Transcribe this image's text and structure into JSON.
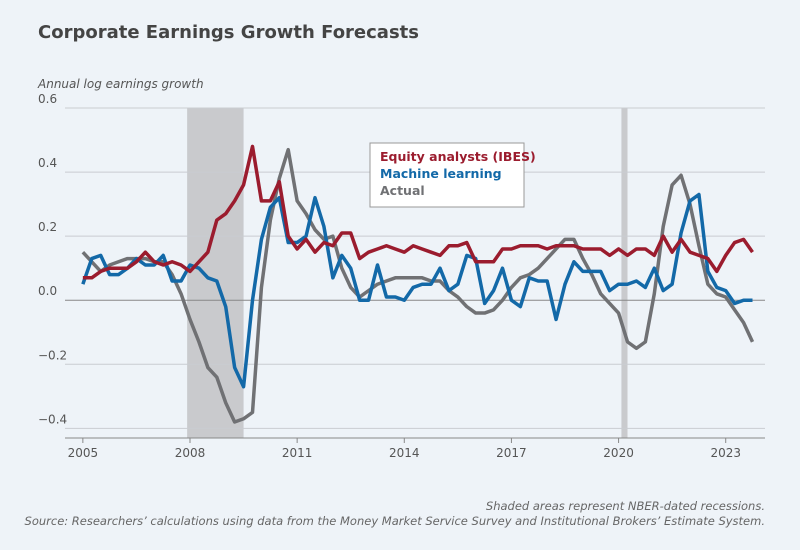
{
  "chart_data": {
    "type": "line",
    "title": "Corporate Earnings Growth Forecasts",
    "y_label": "Annual log earnings growth",
    "notes": [
      "Shaded areas represent NBER-dated recessions.",
      "Source: Researchers’ calculations using data from the Money Market Service Survey and Institutional Brokers’ Estimate System."
    ],
    "x": [
      2005,
      2005.25,
      2005.5,
      2005.75,
      2006,
      2006.25,
      2006.5,
      2006.75,
      2007,
      2007.25,
      2007.5,
      2007.75,
      2008,
      2008.25,
      2008.5,
      2008.75,
      2009,
      2009.25,
      2009.5,
      2009.75,
      2010,
      2010.25,
      2010.5,
      2010.75,
      2011,
      2011.25,
      2011.5,
      2011.75,
      2012,
      2012.25,
      2012.5,
      2012.75,
      2013,
      2013.25,
      2013.5,
      2013.75,
      2014,
      2014.25,
      2014.5,
      2014.75,
      2015,
      2015.25,
      2015.5,
      2015.75,
      2016,
      2016.25,
      2016.5,
      2016.75,
      2017,
      2017.25,
      2017.5,
      2017.75,
      2018,
      2018.25,
      2018.5,
      2018.75,
      2019,
      2019.25,
      2019.5,
      2019.75,
      2020,
      2020.25,
      2020.5,
      2020.75,
      2021,
      2021.25,
      2021.5,
      2021.75,
      2022,
      2022.25,
      2022.5,
      2022.75,
      2023,
      2023.25,
      2023.5,
      2023.75
    ],
    "series": [
      {
        "name": "Equity analysts (IBES)",
        "color": "#9b1c2e",
        "values": [
          0.07,
          0.07,
          0.09,
          0.1,
          0.1,
          0.1,
          0.12,
          0.15,
          0.12,
          0.11,
          0.12,
          0.11,
          0.09,
          0.12,
          0.15,
          0.25,
          0.27,
          0.31,
          0.36,
          0.48,
          0.31,
          0.31,
          0.37,
          0.2,
          0.16,
          0.19,
          0.15,
          0.18,
          0.17,
          0.21,
          0.21,
          0.13,
          0.15,
          0.16,
          0.17,
          0.16,
          0.15,
          0.17,
          0.16,
          0.15,
          0.14,
          0.17,
          0.17,
          0.18,
          0.12,
          0.12,
          0.12,
          0.16,
          0.16,
          0.17,
          0.17,
          0.17,
          0.16,
          0.17,
          0.17,
          0.17,
          0.16,
          0.16,
          0.16,
          0.14,
          0.16,
          0.14,
          0.16,
          0.16,
          0.14,
          0.2,
          0.15,
          0.19,
          0.15,
          0.14,
          0.13,
          0.09,
          0.14,
          0.18,
          0.19,
          0.15
        ]
      },
      {
        "name": "Machine learning",
        "color": "#1369a8",
        "values": [
          0.05,
          0.13,
          0.14,
          0.08,
          0.08,
          0.1,
          0.13,
          0.11,
          0.11,
          0.14,
          0.06,
          0.06,
          0.11,
          0.1,
          0.07,
          0.06,
          -0.02,
          -0.21,
          -0.27,
          0.0,
          0.19,
          0.29,
          0.32,
          0.18,
          0.18,
          0.2,
          0.32,
          0.23,
          0.07,
          0.14,
          0.1,
          0.0,
          0.0,
          0.11,
          0.01,
          0.01,
          0.0,
          0.04,
          0.05,
          0.05,
          0.1,
          0.03,
          0.05,
          0.14,
          0.13,
          -0.01,
          0.03,
          0.1,
          0.0,
          -0.02,
          0.07,
          0.06,
          0.06,
          -0.06,
          0.05,
          0.12,
          0.09,
          0.09,
          0.09,
          0.03,
          0.05,
          0.05,
          0.06,
          0.04,
          0.1,
          0.03,
          0.05,
          0.21,
          0.31,
          0.33,
          0.09,
          0.04,
          0.03,
          -0.01,
          0.0,
          0.0
        ]
      },
      {
        "name": "Actual",
        "color": "#707174",
        "values": [
          0.15,
          0.12,
          0.09,
          0.11,
          0.12,
          0.13,
          0.13,
          0.13,
          0.12,
          0.12,
          0.08,
          0.02,
          -0.06,
          -0.13,
          -0.21,
          -0.24,
          -0.32,
          -0.38,
          -0.37,
          -0.35,
          0.04,
          0.25,
          0.38,
          0.47,
          0.31,
          0.27,
          0.22,
          0.19,
          0.2,
          0.1,
          0.04,
          0.01,
          0.03,
          0.05,
          0.06,
          0.07,
          0.07,
          0.07,
          0.07,
          0.06,
          0.06,
          0.03,
          0.01,
          -0.02,
          -0.04,
          -0.04,
          -0.03,
          0.0,
          0.04,
          0.07,
          0.08,
          0.1,
          0.13,
          0.16,
          0.19,
          0.19,
          0.13,
          0.08,
          0.02,
          -0.01,
          -0.04,
          -0.13,
          -0.15,
          -0.13,
          0.02,
          0.23,
          0.36,
          0.39,
          0.3,
          0.17,
          0.05,
          0.02,
          0.01,
          -0.03,
          -0.07,
          -0.13
        ]
      }
    ],
    "recessions": [
      [
        2007.92,
        2009.5
      ],
      [
        2020.08,
        2020.25
      ]
    ],
    "recession_color": "#c9cacd",
    "xlim": [
      2004.5,
      2024.1
    ],
    "xticks": [
      2005,
      2008,
      2011,
      2014,
      2017,
      2020,
      2023
    ],
    "ylim": [
      -0.43,
      0.6
    ],
    "yticks": [
      0.6,
      0.4,
      0.2,
      {
        "value": 0,
        "label": "0.0"
      },
      {
        "value": -0.2,
        "label": "−0.2"
      },
      {
        "value": -0.4,
        "label": "−0.4"
      }
    ],
    "grid": true
  }
}
